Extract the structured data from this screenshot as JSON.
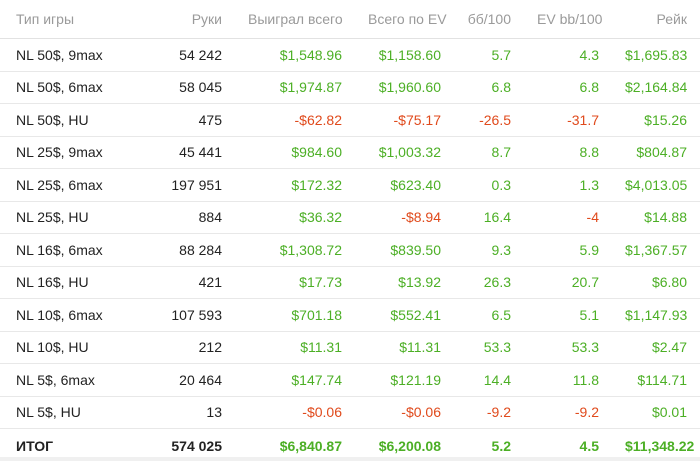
{
  "headers": [
    "Тип игры",
    "Руки",
    "Выиграл всего",
    "Всего по EV",
    "бб/100",
    "EV bb/100",
    "Рейк"
  ],
  "colors": {
    "positive": "#4caf25",
    "negative": "#e04a1c"
  },
  "rows": [
    {
      "name": "NL 50$, 9max",
      "hands": "54 242",
      "won": "$1,548.96",
      "ev": "$1,158.60",
      "bb100": "5.7",
      "evbb100": "4.3",
      "rake": "$1,695.83"
    },
    {
      "name": "NL 50$, 6max",
      "hands": "58 045",
      "won": "$1,974.87",
      "ev": "$1,960.60",
      "bb100": "6.8",
      "evbb100": "6.8",
      "rake": "$2,164.84"
    },
    {
      "name": "NL 50$, HU",
      "hands": "475",
      "won": "-$62.82",
      "ev": "-$75.17",
      "bb100": "-26.5",
      "evbb100": "-31.7",
      "rake": "$15.26"
    },
    {
      "name": "NL 25$, 9max",
      "hands": "45 441",
      "won": "$984.60",
      "ev": "$1,003.32",
      "bb100": "8.7",
      "evbb100": "8.8",
      "rake": "$804.87"
    },
    {
      "name": "NL 25$, 6max",
      "hands": "197 951",
      "won": "$172.32",
      "ev": "$623.40",
      "bb100": "0.3",
      "evbb100": "1.3",
      "rake": "$4,013.05"
    },
    {
      "name": "NL 25$, HU",
      "hands": "884",
      "won": "$36.32",
      "ev": "-$8.94",
      "bb100": "16.4",
      "evbb100": "-4",
      "rake": "$14.88"
    },
    {
      "name": "NL 16$, 6max",
      "hands": "88 284",
      "won": "$1,308.72",
      "ev": "$839.50",
      "bb100": "9.3",
      "evbb100": "5.9",
      "rake": "$1,367.57"
    },
    {
      "name": "NL 16$, HU",
      "hands": "421",
      "won": "$17.73",
      "ev": "$13.92",
      "bb100": "26.3",
      "evbb100": "20.7",
      "rake": "$6.80"
    },
    {
      "name": "NL 10$, 6max",
      "hands": "107 593",
      "won": "$701.18",
      "ev": "$552.41",
      "bb100": "6.5",
      "evbb100": "5.1",
      "rake": "$1,147.93"
    },
    {
      "name": "NL 10$, HU",
      "hands": "212",
      "won": "$11.31",
      "ev": "$11.31",
      "bb100": "53.3",
      "evbb100": "53.3",
      "rake": "$2.47"
    },
    {
      "name": "NL 5$, 6max",
      "hands": "20 464",
      "won": "$147.74",
      "ev": "$121.19",
      "bb100": "14.4",
      "evbb100": "11.8",
      "rake": "$114.71"
    },
    {
      "name": "NL 5$, HU",
      "hands": "13",
      "won": "-$0.06",
      "ev": "-$0.06",
      "bb100": "-9.2",
      "evbb100": "-9.2",
      "rake": "$0.01"
    }
  ],
  "total": {
    "name": "ИТОГ",
    "hands": "574 025",
    "won": "$6,840.87",
    "ev": "$6,200.08",
    "bb100": "5.2",
    "evbb100": "4.5",
    "rake": "$11,348.22"
  }
}
